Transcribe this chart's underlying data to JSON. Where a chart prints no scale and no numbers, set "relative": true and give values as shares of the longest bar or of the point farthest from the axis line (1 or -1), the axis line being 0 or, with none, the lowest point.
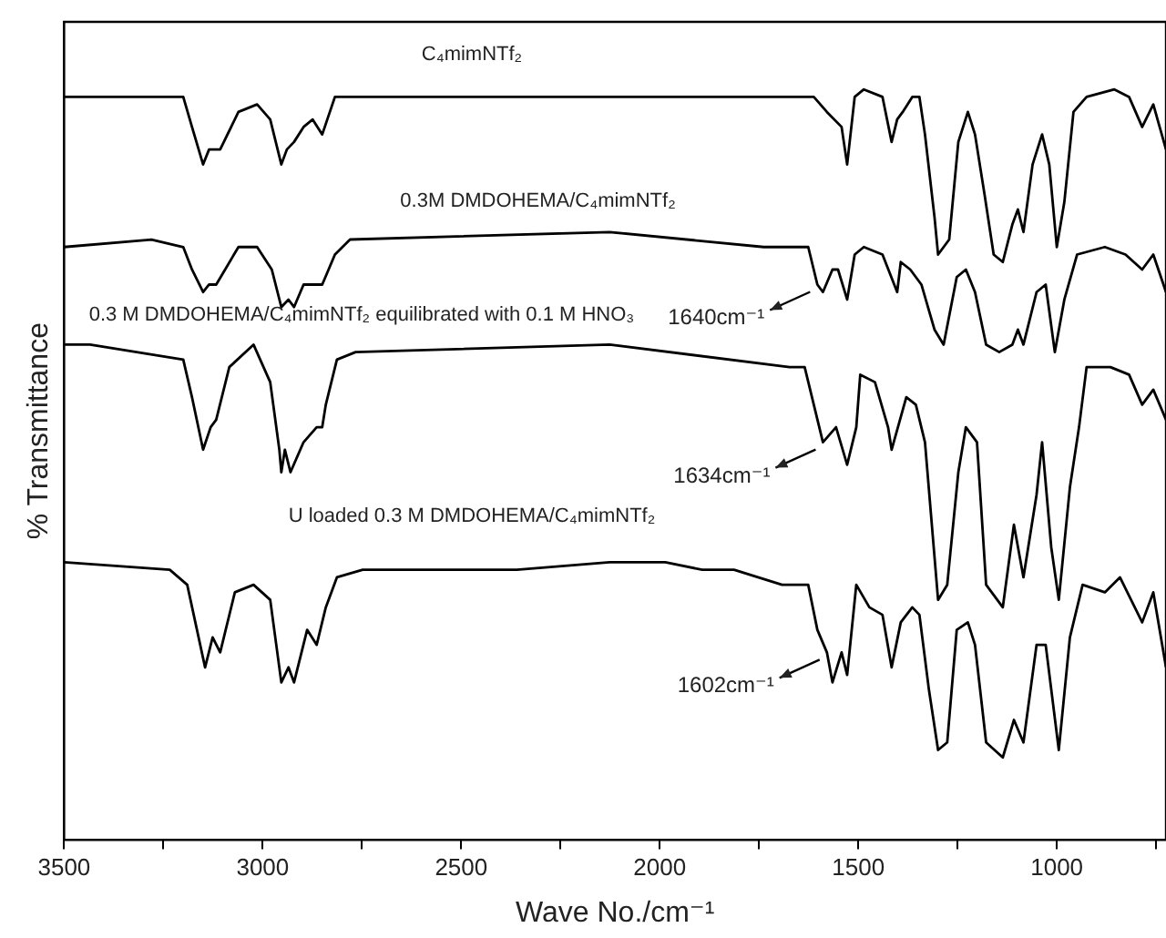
{
  "chart_data": {
    "type": "line",
    "xlabel": "Wave No./cm⁻¹",
    "ylabel": "% Transmittance",
    "relative": true,
    "xlim": [
      3500,
      725
    ],
    "xticks": [
      3500,
      {
        "value": 3250,
        "label": null
      },
      3000,
      {
        "value": 2750,
        "label": null
      },
      2500,
      {
        "value": 2250,
        "label": null
      },
      2000,
      {
        "value": 1750,
        "label": null
      },
      1500,
      {
        "value": 1250,
        "label": null
      },
      1000,
      {
        "value": 750,
        "label": null
      }
    ],
    "grid": false,
    "legend": false,
    "marker": "none",
    "line_style": "solid",
    "series": [
      {
        "name": "C₄mimNTf₂",
        "color": "#000000",
        "x": [
          3500,
          3435,
          3200,
          3178,
          3150,
          3135,
          3121,
          3107,
          3061,
          3014,
          2981,
          2953,
          2939,
          2921,
          2897,
          2874,
          2850,
          2818,
          2780,
          2126,
          1612,
          1579,
          1542,
          1528,
          1509,
          1486,
          1439,
          1416,
          1402,
          1388,
          1364,
          1346,
          1332,
          1308,
          1299,
          1271,
          1248,
          1224,
          1206,
          1182,
          1159,
          1136,
          1112,
          1098,
          1084,
          1061,
          1037,
          1019,
          1000,
          981,
          958,
          925,
          855,
          818,
          785,
          757,
          725
        ],
        "values": [
          0.99,
          0.99,
          0.99,
          0.95,
          0.9,
          0.92,
          0.92,
          0.92,
          0.97,
          0.98,
          0.96,
          0.9,
          0.92,
          0.93,
          0.95,
          0.96,
          0.94,
          0.99,
          0.99,
          0.99,
          0.99,
          0.97,
          0.95,
          0.9,
          0.99,
          1.0,
          0.99,
          0.93,
          0.96,
          0.97,
          0.99,
          0.99,
          0.94,
          0.83,
          0.78,
          0.8,
          0.93,
          0.97,
          0.94,
          0.86,
          0.78,
          0.77,
          0.82,
          0.84,
          0.81,
          0.9,
          0.94,
          0.9,
          0.79,
          0.85,
          0.97,
          0.99,
          1.0,
          0.99,
          0.95,
          0.98,
          0.92
        ]
      },
      {
        "name": "0.3M DMDOHEMA/C₄mimNTf₂",
        "color": "#000000",
        "x": [
          3500,
          3280,
          3200,
          3178,
          3150,
          3135,
          3117,
          3061,
          3014,
          2977,
          2953,
          2935,
          2921,
          2897,
          2874,
          2850,
          2818,
          2780,
          2126,
          1738,
          1673,
          1626,
          1603,
          1589,
          1565,
          1551,
          1528,
          1509,
          1486,
          1439,
          1402,
          1393,
          1369,
          1341,
          1308,
          1285,
          1252,
          1229,
          1206,
          1178,
          1145,
          1112,
          1098,
          1084,
          1051,
          1028,
          1005,
          981,
          949,
          879,
          827,
          785,
          757,
          725
        ],
        "values": [
          0.79,
          0.8,
          0.79,
          0.76,
          0.73,
          0.74,
          0.74,
          0.79,
          0.79,
          0.76,
          0.71,
          0.72,
          0.71,
          0.74,
          0.74,
          0.74,
          0.78,
          0.8,
          0.81,
          0.79,
          0.79,
          0.79,
          0.74,
          0.73,
          0.76,
          0.76,
          0.72,
          0.78,
          0.79,
          0.78,
          0.73,
          0.77,
          0.76,
          0.74,
          0.68,
          0.66,
          0.75,
          0.76,
          0.73,
          0.66,
          0.65,
          0.66,
          0.68,
          0.66,
          0.73,
          0.74,
          0.65,
          0.72,
          0.78,
          0.79,
          0.78,
          0.76,
          0.78,
          0.73
        ]
      },
      {
        "name": "0.3 M DMDOHEMA/C₄mimNTf₂ equilibrated with 0.1 M HNO₃",
        "color": "#000000",
        "x": [
          3500,
          3435,
          3200,
          3178,
          3150,
          3131,
          3117,
          3084,
          3023,
          2981,
          2958,
          2953,
          2944,
          2930,
          2897,
          2864,
          2850,
          2841,
          2813,
          2766,
          2126,
          1673,
          1635,
          1612,
          1589,
          1556,
          1528,
          1505,
          1495,
          1458,
          1425,
          1416,
          1379,
          1355,
          1332,
          1299,
          1276,
          1248,
          1229,
          1201,
          1178,
          1136,
          1108,
          1084,
          1051,
          1037,
          1014,
          995,
          967,
          944,
          925,
          865,
          818,
          785,
          757,
          725
        ],
        "values": [
          0.66,
          0.66,
          0.64,
          0.59,
          0.52,
          0.55,
          0.56,
          0.63,
          0.66,
          0.61,
          0.52,
          0.49,
          0.52,
          0.49,
          0.53,
          0.55,
          0.55,
          0.58,
          0.64,
          0.65,
          0.66,
          0.63,
          0.63,
          0.58,
          0.53,
          0.55,
          0.5,
          0.55,
          0.62,
          0.61,
          0.55,
          0.52,
          0.59,
          0.58,
          0.53,
          0.32,
          0.34,
          0.49,
          0.55,
          0.53,
          0.34,
          0.31,
          0.42,
          0.35,
          0.46,
          0.53,
          0.39,
          0.32,
          0.47,
          0.55,
          0.63,
          0.63,
          0.62,
          0.58,
          0.6,
          0.56
        ]
      },
      {
        "name": "U loaded 0.3 M DMDOHEMA/C₄mimNTf₂",
        "color": "#000000",
        "x": [
          3500,
          3234,
          3190,
          3145,
          3126,
          3107,
          3070,
          3023,
          2981,
          2953,
          2935,
          2921,
          2888,
          2864,
          2841,
          2813,
          2748,
          2360,
          2126,
          2079,
          1986,
          1893,
          1813,
          1692,
          1626,
          1603,
          1579,
          1565,
          1542,
          1528,
          1505,
          1472,
          1439,
          1416,
          1393,
          1364,
          1346,
          1322,
          1299,
          1276,
          1252,
          1224,
          1206,
          1178,
          1136,
          1108,
          1084,
          1051,
          1028,
          995,
          967,
          935,
          879,
          841,
          785,
          757,
          725
        ],
        "values": [
          0.37,
          0.36,
          0.34,
          0.23,
          0.27,
          0.25,
          0.33,
          0.34,
          0.32,
          0.21,
          0.23,
          0.21,
          0.28,
          0.26,
          0.31,
          0.35,
          0.36,
          0.36,
          0.37,
          0.37,
          0.37,
          0.36,
          0.36,
          0.34,
          0.34,
          0.28,
          0.25,
          0.21,
          0.25,
          0.22,
          0.34,
          0.31,
          0.3,
          0.23,
          0.29,
          0.31,
          0.3,
          0.2,
          0.12,
          0.13,
          0.28,
          0.29,
          0.26,
          0.13,
          0.11,
          0.16,
          0.13,
          0.26,
          0.26,
          0.12,
          0.27,
          0.34,
          0.33,
          0.35,
          0.29,
          0.33,
          0.23
        ]
      }
    ],
    "annotations": [
      {
        "text": "1640cm⁻¹",
        "x": 1603,
        "y": 0.74
      },
      {
        "text": "1634cm⁻¹",
        "x": 1589,
        "y": 0.53
      },
      {
        "text": "1602cm⁻¹",
        "x": 1579,
        "y": 0.25
      }
    ]
  }
}
